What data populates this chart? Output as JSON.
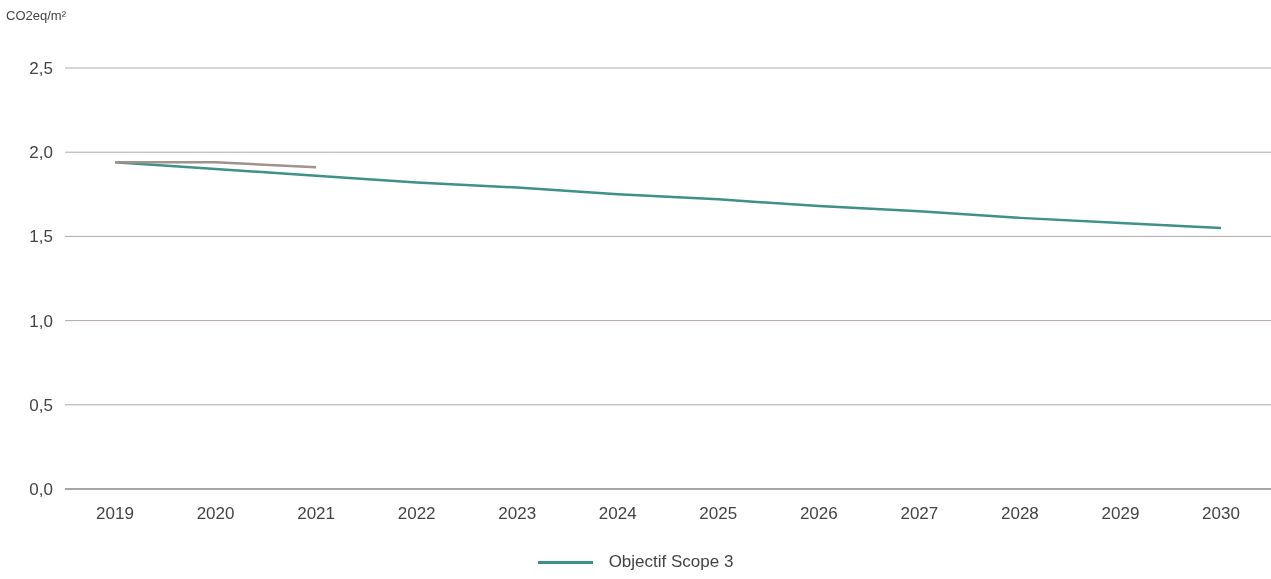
{
  "chart_data": {
    "type": "line",
    "ylabel": "CO2eq/m²",
    "categories": [
      "2019",
      "2020",
      "2021",
      "2022",
      "2023",
      "2024",
      "2025",
      "2026",
      "2027",
      "2028",
      "2029",
      "2030"
    ],
    "series": [
      {
        "name": "Objectif Scope 3",
        "color": "#3d9189",
        "values": [
          1.94,
          1.9,
          1.86,
          1.82,
          1.79,
          1.75,
          1.72,
          1.68,
          1.65,
          1.61,
          1.58,
          1.55
        ]
      },
      {
        "color": "#a0928d",
        "values": [
          1.94,
          1.94,
          1.91,
          null,
          null,
          null,
          null,
          null,
          null,
          null,
          null,
          null
        ]
      }
    ],
    "ylim": [
      0,
      2.5
    ],
    "yticks": [
      {
        "value": 0,
        "label": "0,0"
      },
      {
        "value": 0.5,
        "label": "0,5"
      },
      {
        "value": 1,
        "label": "1,0"
      },
      {
        "value": 1.5,
        "label": "1,5"
      },
      {
        "value": 2,
        "label": "2,0"
      },
      {
        "value": 2.5,
        "label": "2,5"
      }
    ],
    "grid": "y",
    "legend": "bottom",
    "marker": "none",
    "line_style": "solid"
  }
}
